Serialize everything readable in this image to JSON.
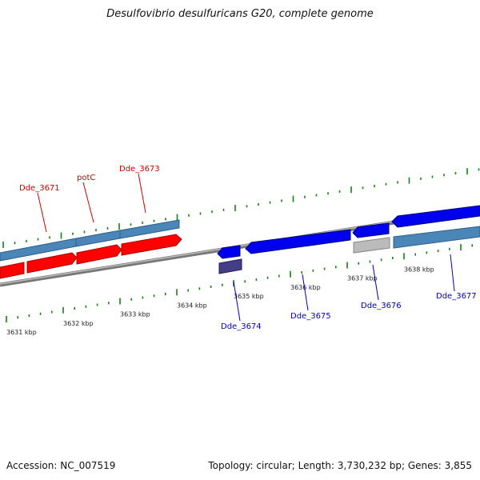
{
  "title": "Desulfovibrio desulfuricans G20, complete genome",
  "footer": {
    "accession": "Accession: NC_007519",
    "summary": "Topology: circular; Length: 3,730,232 bp; Genes: 3,855"
  },
  "colors": {
    "forward_gene": "#ff0000",
    "forward_cds": "#4a86b8",
    "reverse_gene": "#0000ee",
    "reverse_cds": "#4a86b8",
    "pseudo_gene": "#bbbbbb",
    "rna_gene": "#443d88",
    "forward_label": "#cc0000",
    "reverse_label": "#0000bb",
    "tick": "#1a7f1a",
    "backbone": "#888888"
  },
  "ticks_outer": [
    "",
    "",
    "",
    "",
    ""
  ],
  "ticks_inner": [
    "3631 kbp",
    "3632 kbp",
    "3633 kbp",
    "3634 kbp",
    "3635 kbp",
    "3636 kbp",
    "3637 kbp",
    "3638 kbp"
  ],
  "gene_labels": [
    {
      "name": "Dde_3671",
      "strand": "forward"
    },
    {
      "name": "potC",
      "strand": "forward"
    },
    {
      "name": "Dde_3673",
      "strand": "forward"
    },
    {
      "name": "Dde_3674",
      "strand": "reverse"
    },
    {
      "name": "Dde_3675",
      "strand": "reverse"
    },
    {
      "name": "Dde_3676",
      "strand": "reverse"
    },
    {
      "name": "Dde_3677",
      "strand": "reverse"
    }
  ]
}
